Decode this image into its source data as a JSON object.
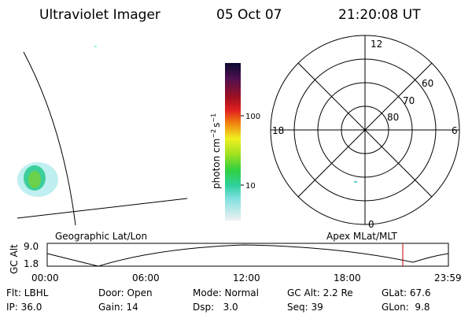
{
  "header": {
    "title": "Ultraviolet Imager",
    "date": "05 Oct 07",
    "time": "21:20:08 UT"
  },
  "colorbar": {
    "label": [
      "photon cm",
      "−2",
      "s",
      "−1"
    ],
    "ticks": [
      "100",
      "10"
    ]
  },
  "polar": {
    "top": "12",
    "left": "18",
    "right": "6",
    "bottom": "0",
    "latitudes": [
      "60",
      "70",
      "80"
    ]
  },
  "timeline": {
    "left_title": "Geographic Lat/Lon",
    "right_title": "Apex MLat/MLT",
    "axis_label": "GC Alt",
    "y_labels": [
      "9.0",
      "1.8"
    ],
    "x_labels": [
      "00:00",
      "06:00",
      "12:00",
      "18:00",
      "23:59"
    ]
  },
  "info": [
    [
      "Flt: LBHL",
      "Door: Open",
      "Mode: Normal",
      "GC Alt: 2.2 Re",
      "GLat: 67.6"
    ],
    [
      "IP: 36.0",
      "Gain: 14",
      "Dsp:   3.0",
      "Seq: 39",
      "GLon:  9.8"
    ]
  ]
}
